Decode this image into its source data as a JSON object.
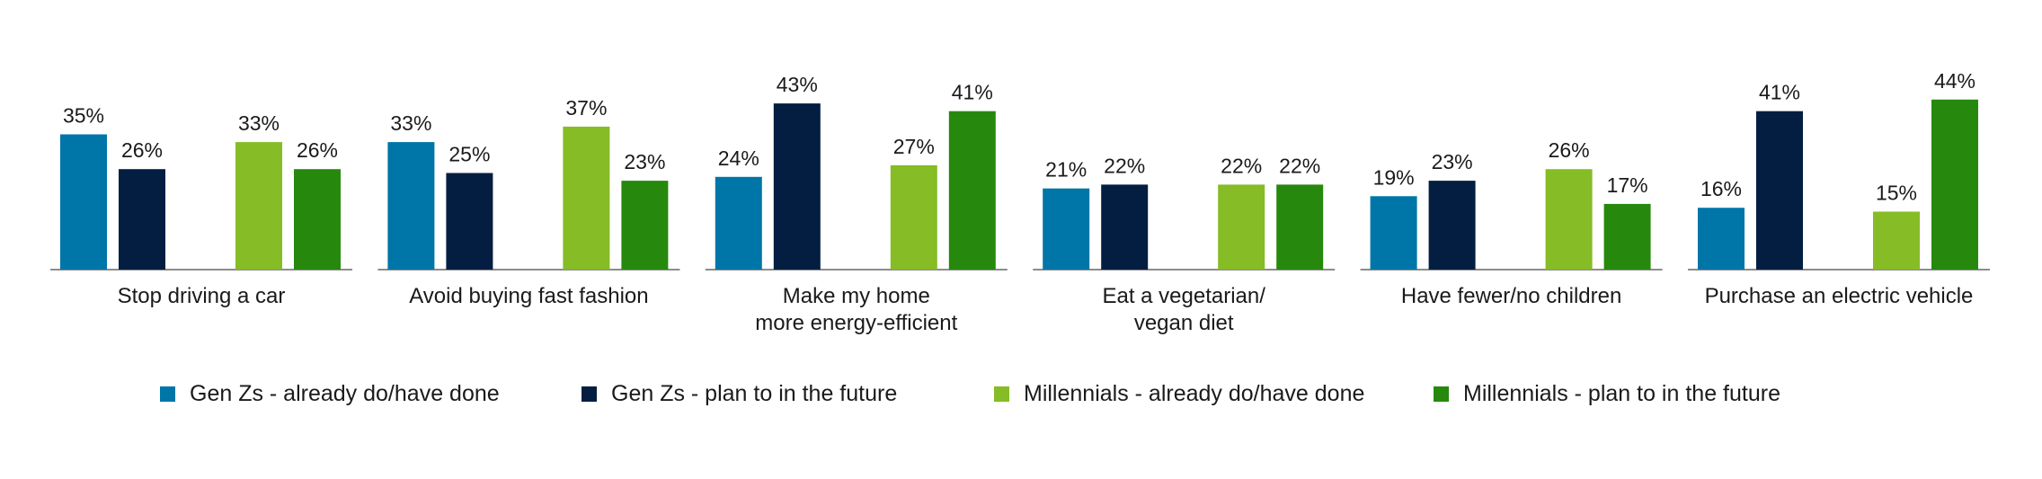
{
  "chart_data": {
    "type": "bar",
    "title": "",
    "xlabel": "",
    "ylabel": "",
    "ylim": [
      0,
      44
    ],
    "grid": false,
    "legend_position": "bottom",
    "categories": [
      [
        "Stop driving a car"
      ],
      [
        "Avoid buying fast fashion"
      ],
      [
        "Make my home",
        "more energy-efficient"
      ],
      [
        "Eat a vegetarian/",
        "vegan diet"
      ],
      [
        "Have fewer/no children"
      ],
      [
        "Purchase an electric vehicle"
      ]
    ],
    "series": [
      {
        "name": "Gen Zs - already do/have done",
        "color": "#0076A8",
        "values": [
          35,
          33,
          24,
          21,
          19,
          16
        ]
      },
      {
        "name": "Gen Zs - plan to in the future",
        "color": "#041E42",
        "values": [
          26,
          25,
          43,
          22,
          23,
          41
        ]
      },
      {
        "name": "Millennials - already do/have done",
        "color": "#86BC25",
        "values": [
          33,
          37,
          27,
          22,
          26,
          15
        ]
      },
      {
        "name": "Millennials - plan to in the future",
        "color": "#26890D",
        "values": [
          26,
          23,
          41,
          22,
          17,
          44
        ]
      }
    ],
    "value_suffix": "%"
  }
}
